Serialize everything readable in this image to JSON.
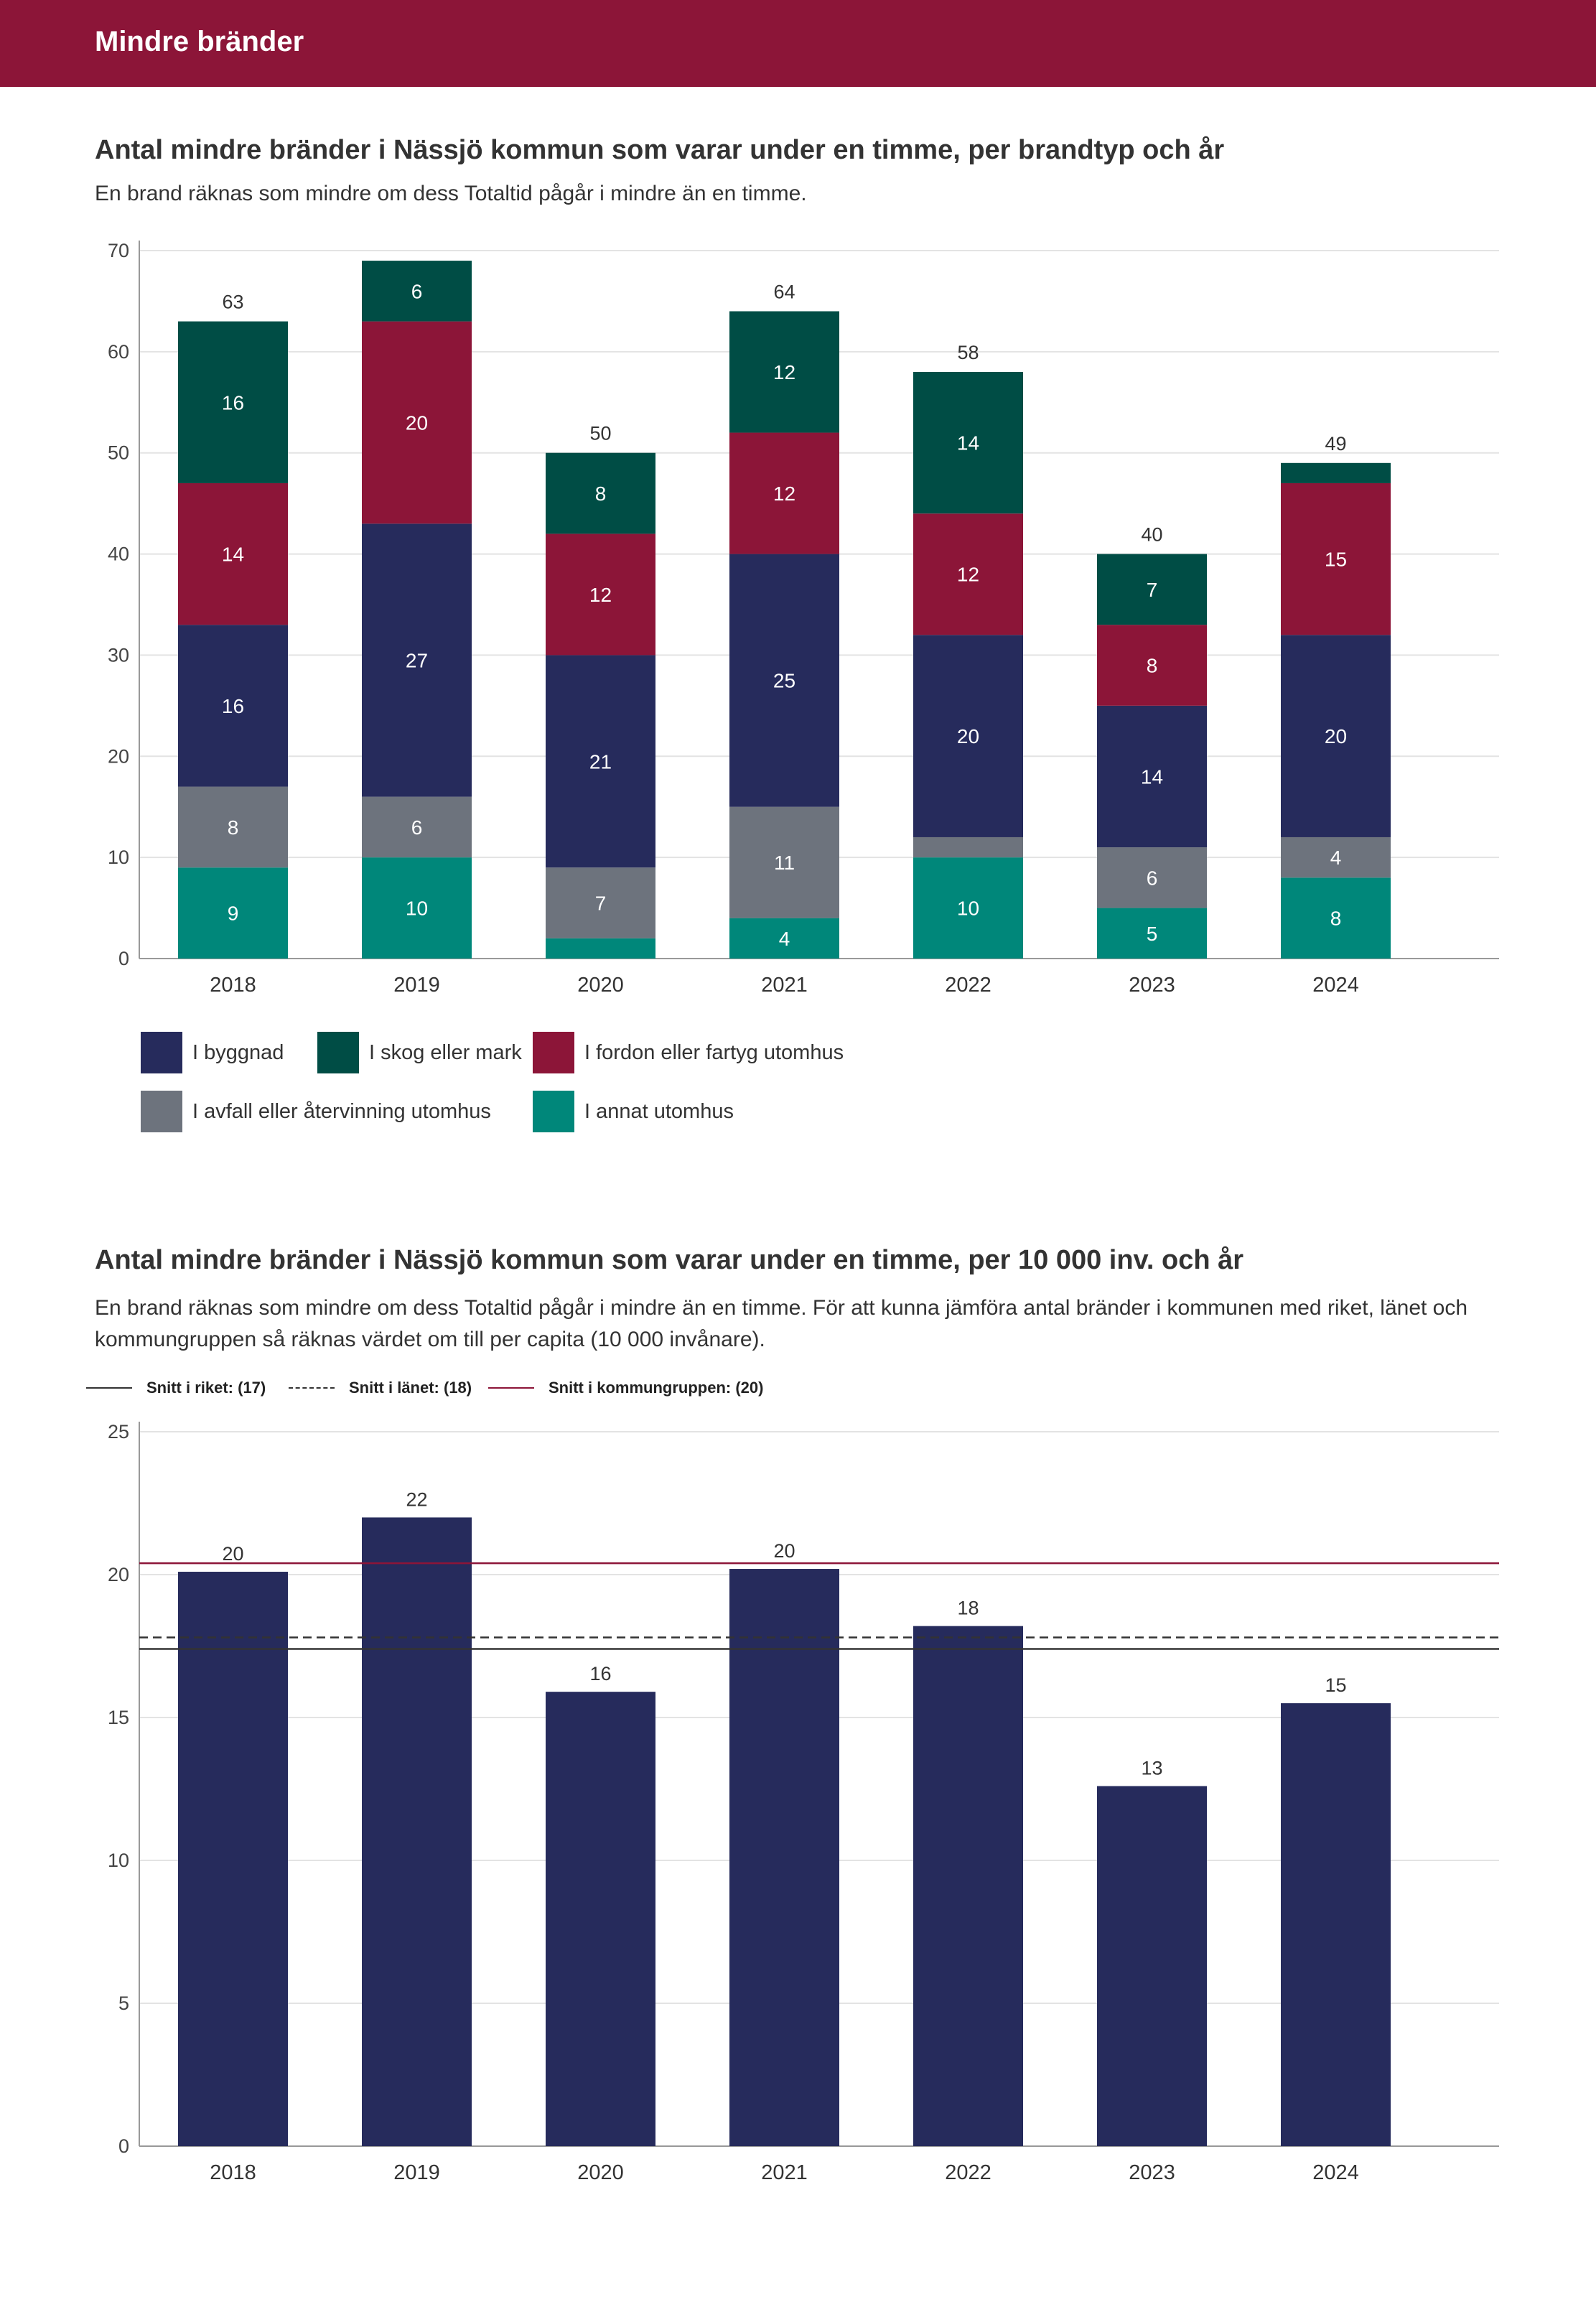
{
  "header": {
    "title": "Mindre bränder"
  },
  "chart1": {
    "title": "Antal mindre bränder i Nässjö kommun som varar under en timme, per brandtyp och år",
    "subtitle": "En brand räknas som mindre om dess Totaltid pågår i mindre än en timme."
  },
  "chart2": {
    "title": "Antal mindre bränder i Nässjö kommun som varar under en timme, per 10 000 inv. och år",
    "subtitle": "En brand räknas som mindre om dess Totaltid pågår i mindre än en timme. För att kunna jämföra antal bränder i kommunen med riket, länet och kommungruppen så räknas värdet om till per capita (10 000 invånare)."
  },
  "chart_data": [
    {
      "type": "bar",
      "stacked": true,
      "title": "Antal mindre bränder i Nässjö kommun som varar under en timme, per brandtyp och år",
      "subtitle": "En brand räknas som mindre om dess Totaltid pågår i mindre än en timme.",
      "categories": [
        "2018",
        "2019",
        "2020",
        "2021",
        "2022",
        "2023",
        "2024"
      ],
      "ylim": [
        0,
        70
      ],
      "yticks": [
        0,
        10,
        20,
        30,
        40,
        50,
        60,
        70
      ],
      "grid": true,
      "legend_position": "bottom-left",
      "series": [
        {
          "name": "I annat utomhus",
          "color": "#00877a",
          "values": [
            9,
            10,
            2,
            4,
            10,
            5,
            8
          ],
          "labels": [
            "9",
            "10",
            "",
            "4",
            "10",
            "5",
            "8"
          ]
        },
        {
          "name": "I avfall eller återvinning utomhus",
          "color": "#6d737d",
          "values": [
            8,
            6,
            7,
            11,
            2,
            6,
            4
          ],
          "labels": [
            "8",
            "6",
            "7",
            "11",
            "",
            "6",
            "4"
          ]
        },
        {
          "name": "I byggnad",
          "color": "#262b5c",
          "values": [
            16,
            27,
            21,
            25,
            20,
            14,
            20
          ],
          "labels": [
            "16",
            "27",
            "21",
            "25",
            "20",
            "14",
            "20"
          ]
        },
        {
          "name": "I fordon eller fartyg utomhus",
          "color": "#8c1538",
          "values": [
            14,
            20,
            12,
            12,
            12,
            8,
            15
          ],
          "labels": [
            "14",
            "20",
            "12",
            "12",
            "12",
            "8",
            "15"
          ]
        },
        {
          "name": "I skog eller mark",
          "color": "#004d45",
          "values": [
            16,
            6,
            8,
            12,
            14,
            7,
            2
          ],
          "labels": [
            "16",
            "6",
            "8",
            "12",
            "14",
            "7",
            ""
          ]
        }
      ],
      "totals": [
        "63",
        "",
        "50",
        "64",
        "58",
        "40",
        "49"
      ]
    },
    {
      "type": "bar",
      "title": "Antal mindre bränder i Nässjö kommun som varar under en timme, per 10 000 inv. och år",
      "subtitle": "En brand räknas som mindre om dess Totaltid pågår i mindre än en timme. För att kunna jämföra antal bränder i kommunen med riket, länet och kommungruppen så räknas värdet om till per capita (10 000 invånare).",
      "categories": [
        "2018",
        "2019",
        "2020",
        "2021",
        "2022",
        "2023",
        "2024"
      ],
      "values": [
        20.1,
        22.0,
        15.9,
        20.2,
        18.2,
        12.6,
        15.5
      ],
      "value_labels": [
        "20",
        "22",
        "16",
        "20",
        "18",
        "13",
        "15"
      ],
      "bar_color": "#262b5c",
      "ylim": [
        0,
        25
      ],
      "yticks": [
        0,
        5,
        10,
        15,
        20,
        25
      ],
      "grid": true,
      "reference_lines": [
        {
          "name": "Snitt i riket: (17)",
          "value": 17.4,
          "style": "solid",
          "color": "#333333"
        },
        {
          "name": "Snitt i länet: (18)",
          "value": 17.8,
          "style": "dashed",
          "color": "#333333"
        },
        {
          "name": "Snitt i kommungruppen: (20)",
          "value": 20.4,
          "style": "solid",
          "color": "#8c1538"
        }
      ]
    }
  ]
}
